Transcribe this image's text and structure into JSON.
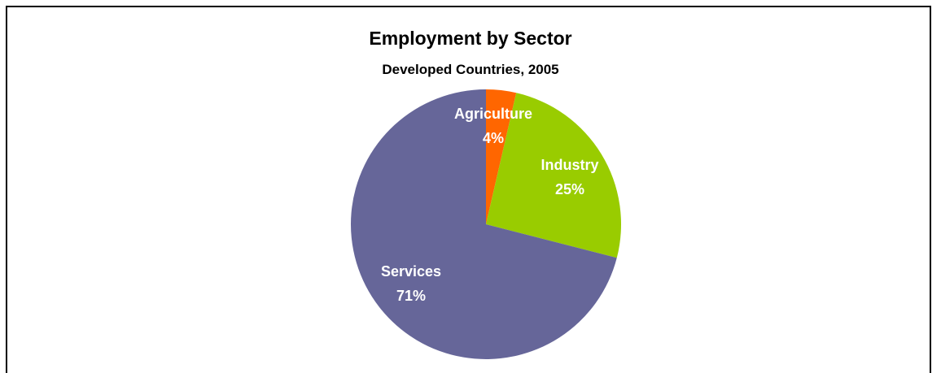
{
  "chart_data": {
    "type": "pie",
    "title": "Employment by Sector",
    "subtitle": "Developed Countries, 2005",
    "slices": [
      {
        "label": "Agriculture",
        "pct_label": "4%",
        "value": 3.6,
        "color": "#FF6600"
      },
      {
        "label": "Industry",
        "pct_label": "25%",
        "value": 25.4,
        "color": "#99CC00"
      },
      {
        "label": "Services",
        "pct_label": "71%",
        "value": 71.0,
        "color": "#666699"
      }
    ],
    "start_angle_deg": 0,
    "direction": "clockwise",
    "legend": "none"
  }
}
